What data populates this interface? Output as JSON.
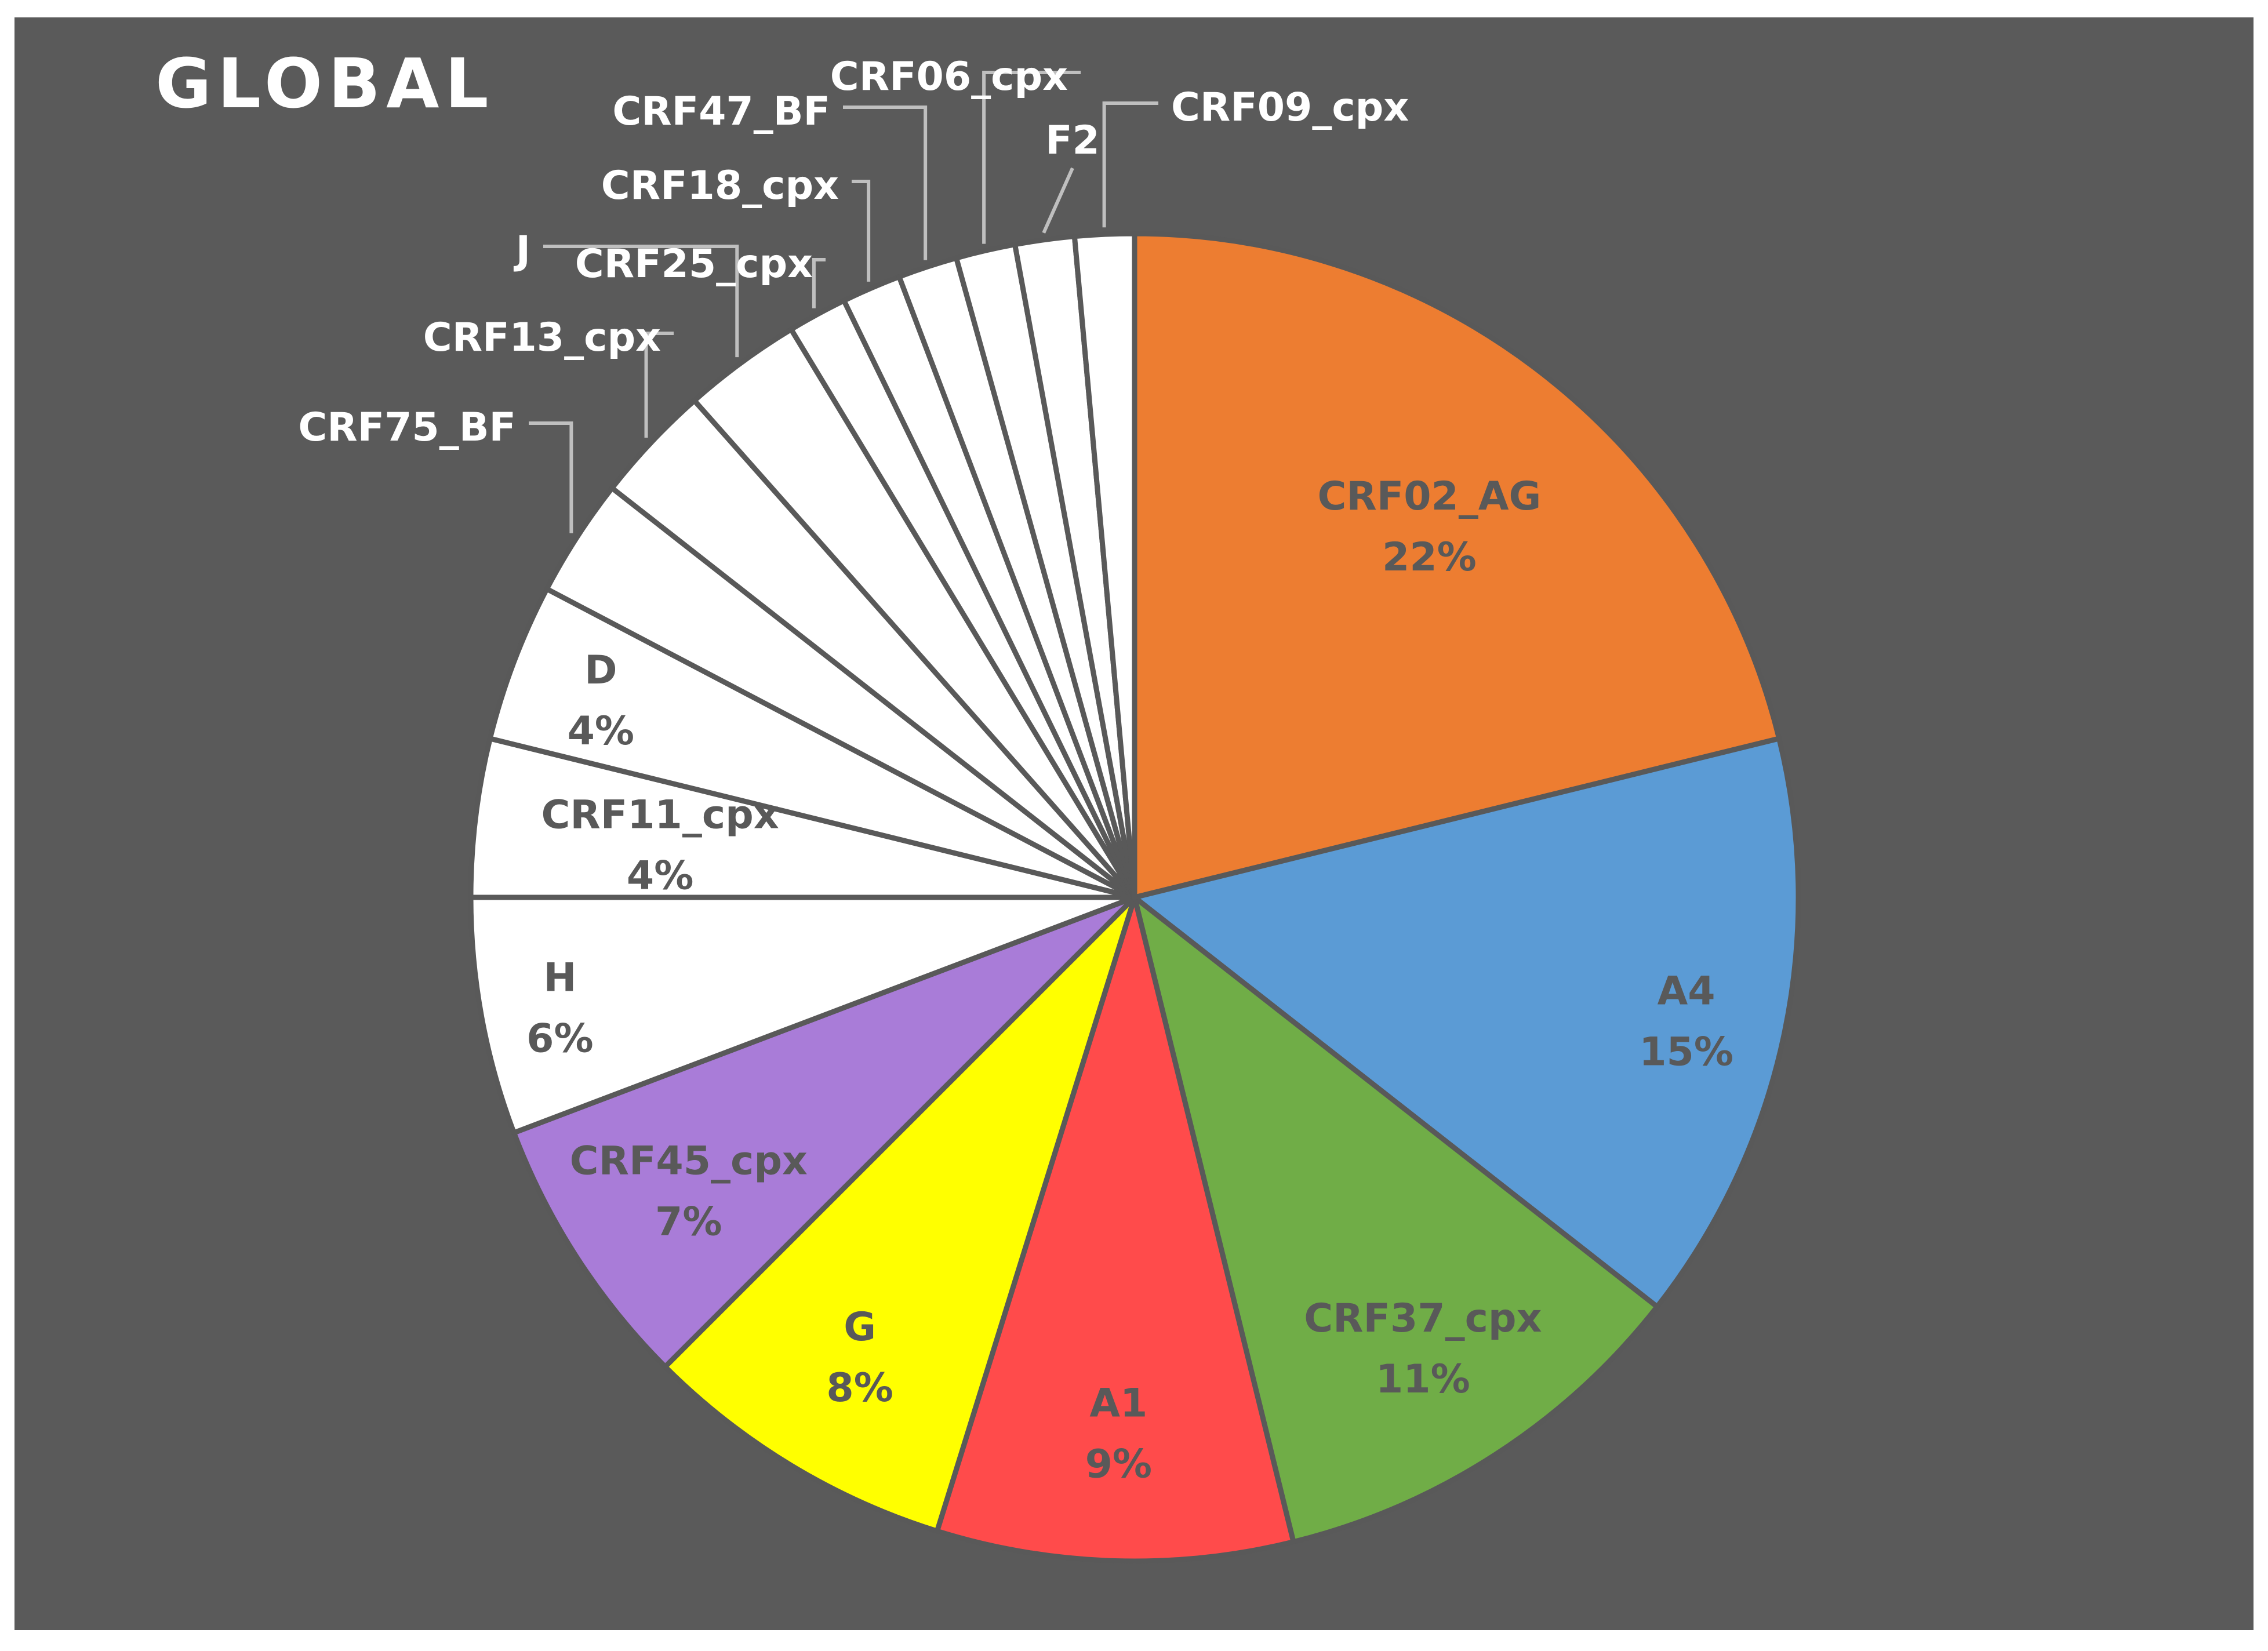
{
  "chart_data": {
    "type": "pie",
    "title": "GLOBAL",
    "slices": [
      {
        "name": "CRF02_AG",
        "value": 22,
        "label": "22%",
        "color": "#ED7D31"
      },
      {
        "name": "A4",
        "value": 15,
        "label": "15%",
        "color": "#5B9BD5"
      },
      {
        "name": "CRF37_cpx",
        "value": 11,
        "label": "11%",
        "color": "#70AD47"
      },
      {
        "name": "A1",
        "value": 9,
        "label": "9%",
        "color": "#FF4B4B"
      },
      {
        "name": "G",
        "value": 8,
        "label": "8%",
        "color": "#FFFF00"
      },
      {
        "name": "CRF45_cpx",
        "value": 7,
        "label": "7%",
        "color": "#A97CD8"
      },
      {
        "name": "H",
        "value": 6,
        "label": "6%",
        "color": "#FFFFFF"
      },
      {
        "name": "CRF11_cpx",
        "value": 4,
        "label": "4%",
        "color": "#FFFFFF"
      },
      {
        "name": "D",
        "value": 4,
        "label": "4%",
        "color": "#FFFFFF"
      },
      {
        "name": "CRF75_BF",
        "value": 3,
        "label": "",
        "color": "#FFFFFF"
      },
      {
        "name": "CRF13_cpx",
        "value": 3,
        "label": "",
        "color": "#FFFFFF"
      },
      {
        "name": "J",
        "value": 3,
        "label": "",
        "color": "#FFFFFF"
      },
      {
        "name": "CRF25_cpx",
        "value": 1.5,
        "label": "",
        "color": "#FFFFFF"
      },
      {
        "name": "CRF18_cpx",
        "value": 1.5,
        "label": "",
        "color": "#FFFFFF"
      },
      {
        "name": "CRF47_BF",
        "value": 1.5,
        "label": "",
        "color": "#FFFFFF"
      },
      {
        "name": "CRF06_cpx",
        "value": 1.5,
        "label": "",
        "color": "#FFFFFF"
      },
      {
        "name": "F2",
        "value": 1.5,
        "label": "",
        "color": "#FFFFFF"
      },
      {
        "name": "CRF09_cpx",
        "value": 1.5,
        "label": "",
        "color": "#FFFFFF"
      }
    ],
    "background_color": "#5A5A5A",
    "slice_border_color": "#595959",
    "inside_label_color": "#595959",
    "outside_label_color": "#FFFFFF",
    "leader_line_color": "#BFBFBF"
  }
}
